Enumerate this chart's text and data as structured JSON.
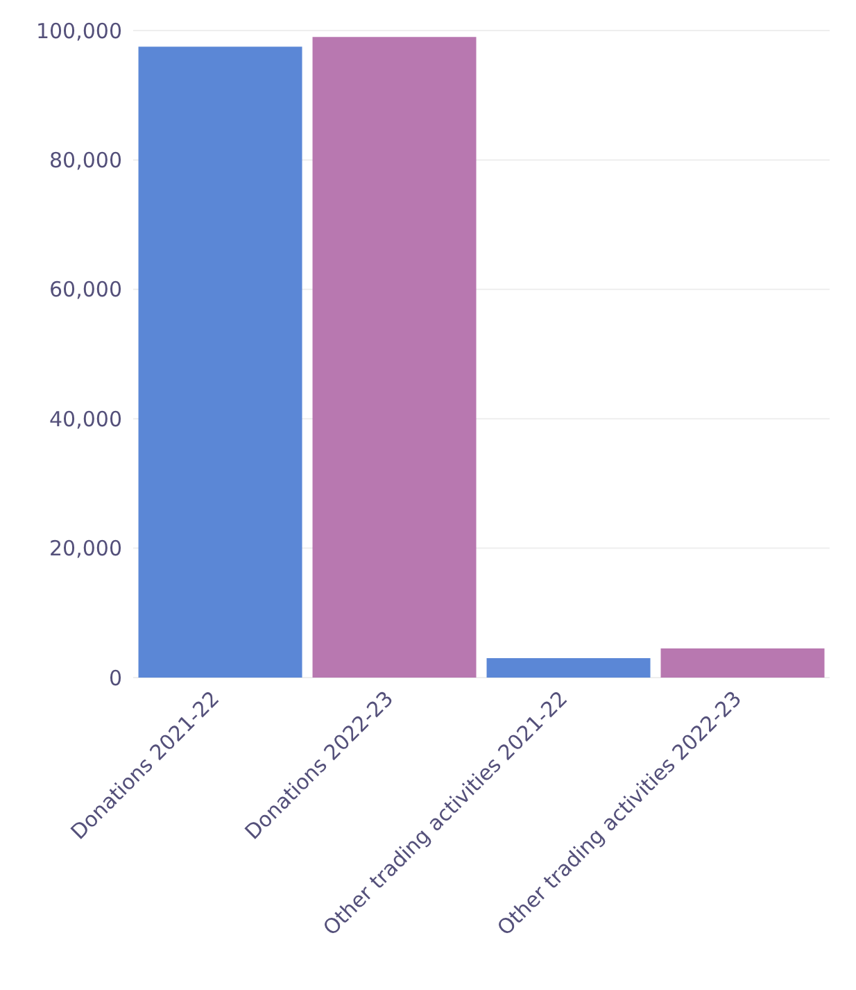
{
  "chart_data": {
    "type": "bar",
    "categories": [
      "Donations 2021-22",
      "Donations 2022-23",
      "Other trading activities 2021-22",
      "Other trading activities 2022-23"
    ],
    "values": [
      97500,
      99000,
      3000,
      4500
    ],
    "colors": [
      "#5b87d6",
      "#b878b0",
      "#5b87d6",
      "#b878b0"
    ],
    "ylim": [
      0,
      100000
    ],
    "yticks": [
      0,
      {
        "value": 20000,
        "label": "20,000"
      },
      {
        "value": 40000,
        "label": "40,000"
      },
      {
        "value": 60000,
        "label": "60,000"
      },
      {
        "value": 80000,
        "label": "80,000"
      },
      {
        "value": 100000,
        "label": "100,000"
      }
    ],
    "grid": "y"
  }
}
